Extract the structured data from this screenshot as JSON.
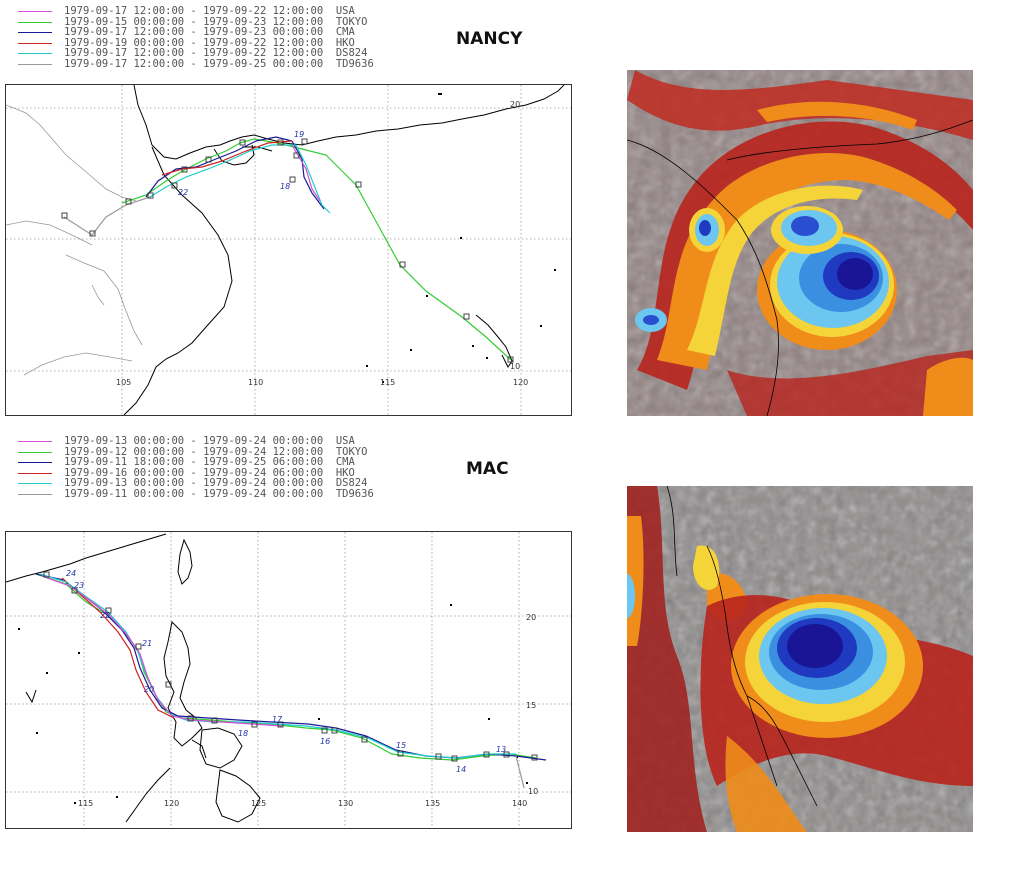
{
  "storms": [
    {
      "name": "NANCY",
      "legend": [
        {
          "range": "1979-09-17 12:00:00 - 1979-09-22 12:00:00",
          "agency": "USA",
          "color": "#d34fd3"
        },
        {
          "range": "1979-09-15 00:00:00 - 1979-09-23 12:00:00",
          "agency": "TOKYO",
          "color": "#33cc33"
        },
        {
          "range": "1979-09-17 12:00:00 - 1979-09-23 00:00:00",
          "agency": "CMA",
          "color": "#1a1a99"
        },
        {
          "range": "1979-09-19 00:00:00 - 1979-09-22 12:00:00",
          "agency": "HKO",
          "color": "#cc2222"
        },
        {
          "range": "1979-09-17 12:00:00 - 1979-09-22 12:00:00",
          "agency": "DS824",
          "color": "#22cccc"
        },
        {
          "range": "1979-09-17 12:00:00 - 1979-09-25 00:00:00",
          "agency": "TD9636",
          "color": "#999999"
        }
      ],
      "map": {
        "lon_labels": [
          "105",
          "110",
          "115",
          "120"
        ],
        "lat_labels": [
          "20",
          "10"
        ],
        "date_labels": [
          "19",
          "18",
          "22"
        ]
      }
    },
    {
      "name": "MAC",
      "legend": [
        {
          "range": "1979-09-13 00:00:00 - 1979-09-24 00:00:00",
          "agency": "USA",
          "color": "#d34fd3"
        },
        {
          "range": "1979-09-12 00:00:00 - 1979-09-24 12:00:00",
          "agency": "TOKYO",
          "color": "#33cc33"
        },
        {
          "range": "1979-09-11 18:00:00 - 1979-09-25 06:00:00",
          "agency": "CMA",
          "color": "#1a1a99"
        },
        {
          "range": "1979-09-16 00:00:00 - 1979-09-24 06:00:00",
          "agency": "HKO",
          "color": "#cc2222"
        },
        {
          "range": "1979-09-13 00:00:00 - 1979-09-24 00:00:00",
          "agency": "DS824",
          "color": "#22cccc"
        },
        {
          "range": "1979-09-11 00:00:00 - 1979-09-24 00:00:00",
          "agency": "TD9636",
          "color": "#999999"
        }
      ],
      "map": {
        "lon_labels": [
          "115",
          "120",
          "125",
          "130",
          "135",
          "140"
        ],
        "lat_labels": [
          "20",
          "15",
          "10"
        ],
        "date_labels": [
          "24",
          "23",
          "22",
          "21",
          "20",
          "18",
          "17",
          "16",
          "15",
          "14",
          "13"
        ]
      }
    }
  ]
}
